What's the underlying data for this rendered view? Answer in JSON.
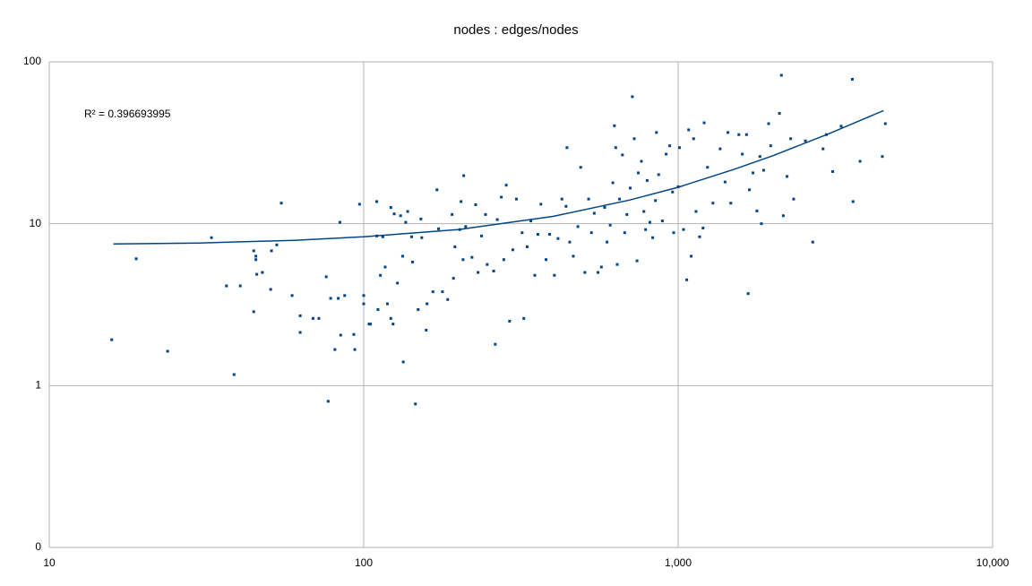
{
  "chart_data": {
    "type": "scatter",
    "title": "nodes : edges/nodes",
    "annotation": "R² = 0.396693995",
    "color": "#004586",
    "log_x": true,
    "log_y": true,
    "grid": true,
    "xlim": [
      10,
      10000
    ],
    "xticks": [
      10,
      100,
      {
        "value": 1000,
        "label": "1,000"
      },
      {
        "value": 10000,
        "label": "10,000"
      }
    ],
    "ylim": [
      0.1,
      100
    ],
    "yticks": [
      {
        "value": 0.1,
        "label": "0"
      },
      1,
      10,
      100
    ],
    "x": [
      15.8,
      18.9,
      23.8,
      32.8,
      36.6,
      38.7,
      40.5,
      44.7,
      44.7,
      45.4,
      45.4,
      45.7,
      47.6,
      50.6,
      50.9,
      52.9,
      54.7,
      59.2,
      62.8,
      62.8,
      69,
      72,
      76,
      77.1,
      78.5,
      81,
      83,
      84,
      84.5,
      87,
      93,
      93.7,
      97,
      100,
      100,
      104,
      105,
      110,
      110,
      111,
      113,
      115,
      117,
      119,
      122,
      122,
      124,
      125,
      128,
      131,
      133,
      133.6,
      136,
      138,
      142,
      143,
      146,
      149,
      152,
      153,
      158,
      159,
      166,
      171,
      173,
      178,
      185,
      191,
      193,
      195,
      202,
      204,
      207,
      208,
      211,
      221,
      227,
      231,
      237,
      244,
      247,
      259,
      262,
      266,
      274,
      279,
      284,
      291,
      298,
      306,
      319,
      323,
      331,
      340,
      350,
      358,
      366,
      380,
      390,
      404,
      415,
      427,
      440,
      443,
      452,
      464,
      480,
      490,
      505,
      519,
      530,
      541,
      556,
      570,
      584,
      594,
      608,
      620,
      627,
      633,
      640,
      651,
      665,
      676,
      687,
      704,
      715,
      725,
      740,
      747,
      764,
      778,
      788,
      797,
      813,
      830,
      847,
      853,
      867,
      891,
      916,
      940,
      960,
      968,
      1000,
      1010,
      1040,
      1065,
      1080,
      1100,
      1120,
      1140,
      1170,
      1200,
      1210,
      1240,
      1290,
      1360,
      1410,
      1440,
      1470,
      1560,
      1600,
      1650,
      1670,
      1685,
      1730,
      1780,
      1820,
      1840,
      1870,
      1940,
      1970,
      2100,
      2130,
      2160,
      2220,
      2280,
      2330,
      2540,
      2680,
      2890,
      2960,
      3100,
      3300,
      3580,
      3600,
      3790,
      4460,
      4560
    ],
    "values": [
      1.92,
      6.07,
      1.63,
      8.2,
      4.13,
      1.17,
      4.13,
      6.8,
      2.86,
      6.3,
      6.0,
      4.87,
      5.0,
      3.93,
      6.8,
      7.4,
      13.4,
      3.6,
      2.7,
      2.13,
      2.6,
      2.6,
      4.7,
      0.8,
      3.46,
      1.67,
      3.46,
      10.2,
      2.05,
      3.6,
      2.07,
      1.67,
      13.2,
      3.6,
      3.2,
      2.4,
      2.4,
      13.7,
      8.4,
      2.95,
      4.8,
      8.3,
      5.4,
      3.2,
      12.6,
      2.6,
      2.4,
      11.5,
      4.3,
      11.2,
      6.3,
      1.4,
      10.2,
      11.9,
      8.3,
      5.8,
      0.77,
      2.95,
      10.7,
      8.2,
      2.2,
      3.2,
      3.8,
      16.2,
      9.3,
      3.8,
      3.4,
      11.4,
      4.6,
      7.2,
      9.2,
      13.7,
      6.0,
      19.8,
      9.6,
      6.2,
      13.1,
      5.0,
      8.4,
      11.4,
      5.6,
      5.1,
      1.8,
      10.6,
      14.6,
      6.0,
      17.3,
      2.5,
      6.9,
      14.2,
      8.8,
      2.6,
      7.2,
      10.4,
      4.8,
      8.6,
      13.2,
      6.0,
      8.6,
      4.8,
      8.1,
      14.2,
      12.8,
      29.5,
      7.7,
      6.3,
      9.6,
      22.3,
      5.0,
      14.2,
      8.8,
      11.6,
      5.0,
      5.4,
      12.6,
      7.7,
      9.8,
      17.9,
      40.3,
      29.5,
      5.6,
      14.2,
      26.6,
      8.8,
      11.4,
      16.6,
      60.9,
      33.5,
      5.9,
      20.6,
      24.3,
      11.9,
      9.2,
      18.5,
      10.2,
      8.2,
      13.9,
      36.6,
      20.1,
      10.4,
      26.9,
      30.3,
      15.7,
      8.8,
      16.9,
      29.5,
      9.2,
      4.5,
      38,
      6.3,
      33.5,
      11.9,
      8.3,
      9.4,
      42,
      22.3,
      13.4,
      29,
      18.1,
      36.6,
      13.4,
      35.5,
      26.9,
      35.5,
      3.7,
      16.2,
      20.6,
      12,
      26,
      10,
      21.4,
      41.5,
      30.3,
      48,
      82.6,
      11.2,
      19.6,
      33.5,
      14.2,
      32.5,
      7.7,
      29,
      35.5,
      21,
      40,
      78,
      13.7,
      24.3,
      26,
      41.5
    ],
    "trendline": {
      "color": "#004586",
      "x": [
        16,
        30,
        60,
        100,
        200,
        400,
        700,
        1000,
        1500,
        2000,
        3000,
        4500
      ],
      "values": [
        7.5,
        7.6,
        7.9,
        8.3,
        9.2,
        11.1,
        14.0,
        16.8,
        21.6,
        26.3,
        35.8,
        50.0
      ]
    }
  }
}
